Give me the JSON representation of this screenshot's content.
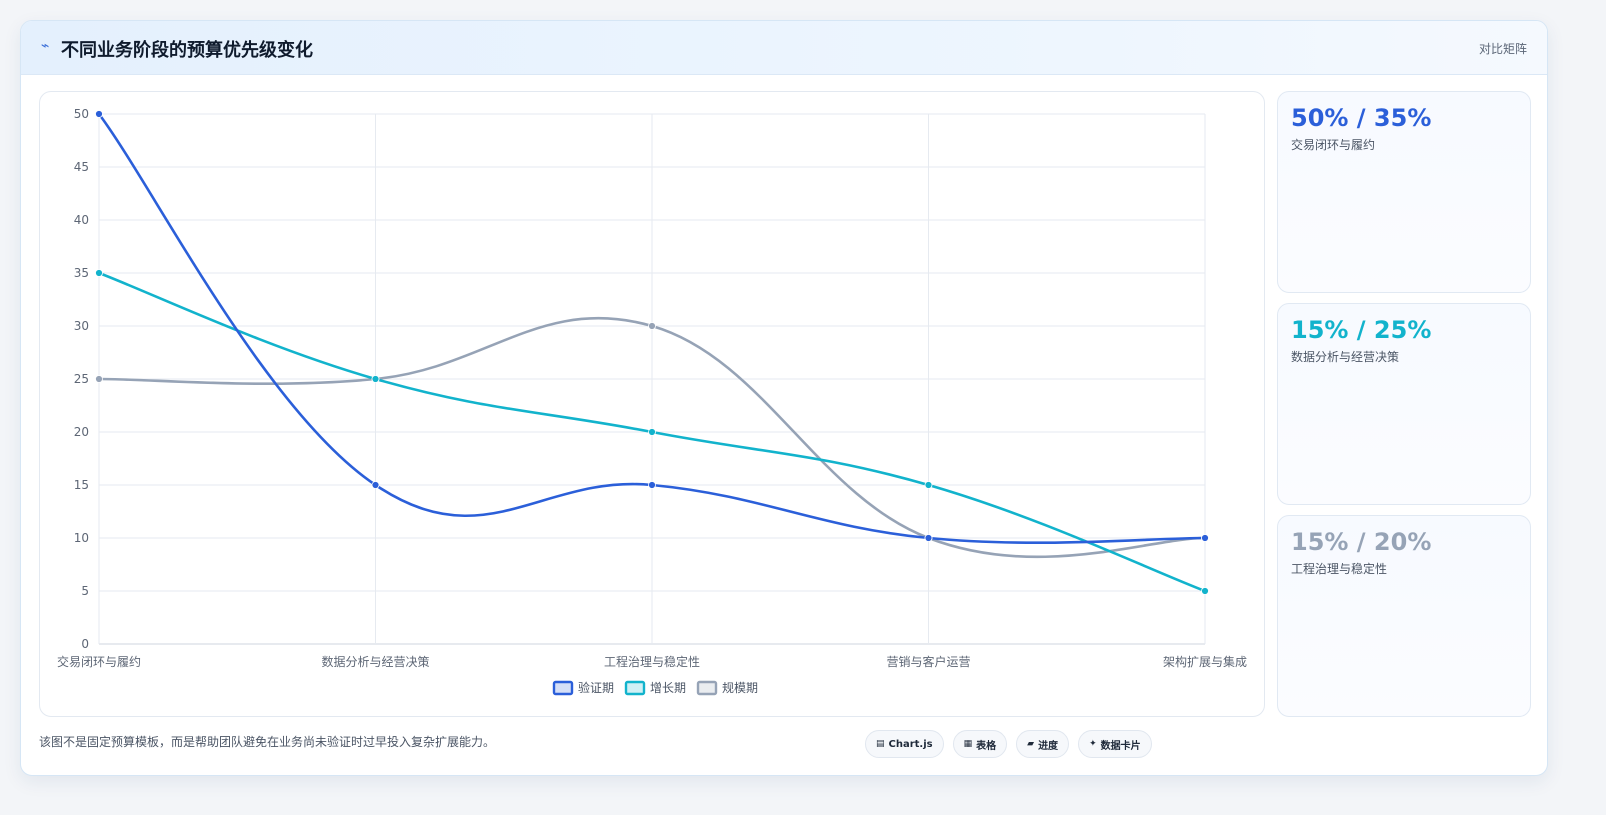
{
  "header": {
    "icon": "⌁",
    "title": "不同业务阶段的预算优先级变化",
    "tag": "对比矩阵"
  },
  "chart_data": {
    "type": "line",
    "categories": [
      "交易闭环与履约",
      "数据分析与经营决策",
      "工程治理与稳定性",
      "营销与客户运营",
      "架构扩展与集成"
    ],
    "series": [
      {
        "name": "验证期",
        "color": "#2b5fd9",
        "values": [
          50,
          15,
          15,
          10,
          10
        ]
      },
      {
        "name": "增长期",
        "color": "#12b3cc",
        "values": [
          35,
          25,
          20,
          15,
          5
        ]
      },
      {
        "name": "规模期",
        "color": "#96a3b6",
        "values": [
          25,
          25,
          30,
          10,
          10
        ]
      }
    ],
    "ylim": [
      0,
      50
    ],
    "yticks": [
      0,
      5,
      10,
      15,
      20,
      25,
      30,
      35,
      40,
      45,
      50
    ],
    "grid": true,
    "legend": "bottom-center",
    "curve": "smooth"
  },
  "side_cards": [
    {
      "value": "50% / 35%",
      "label": "交易闭环与履约",
      "color": "#2b5fd9"
    },
    {
      "value": "15% / 25%",
      "label": "数据分析与经营决策",
      "color": "#12b3cc"
    },
    {
      "value": "15% / 20%",
      "label": "工程治理与稳定性",
      "color": "#96a3b6"
    }
  ],
  "footnote": "该图不是固定预算模板，而是帮助团队避免在业务尚未验证时过早投入复杂扩展能力。",
  "pills": [
    {
      "icon": "▤",
      "label": "Chart.js"
    },
    {
      "icon": "▦",
      "label": "表格"
    },
    {
      "icon": "▰",
      "label": "进度"
    },
    {
      "icon": "✦",
      "label": "数据卡片"
    }
  ]
}
